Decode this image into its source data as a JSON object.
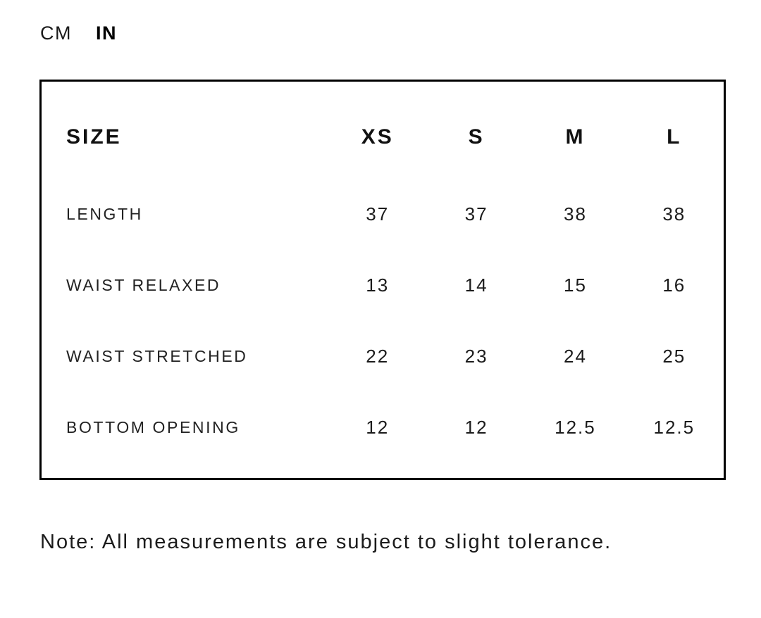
{
  "unit_toggle": {
    "options": [
      {
        "label": "CM",
        "selected": false
      },
      {
        "label": "IN",
        "selected": true
      }
    ]
  },
  "size_chart": {
    "columns": [
      "SIZE",
      "XS",
      "S",
      "M",
      "L"
    ],
    "rows": [
      {
        "label": "LENGTH",
        "values": [
          "37",
          "37",
          "38",
          "38"
        ]
      },
      {
        "label": "WAIST RELAXED",
        "values": [
          "13",
          "14",
          "15",
          "16"
        ]
      },
      {
        "label": "WAIST STRETCHED",
        "values": [
          "22",
          "23",
          "24",
          "25"
        ]
      },
      {
        "label": "BOTTOM OPENING",
        "values": [
          "12",
          "12",
          "12.5",
          "12.5"
        ]
      }
    ]
  },
  "note": "Note: All measurements are subject to slight tolerance."
}
